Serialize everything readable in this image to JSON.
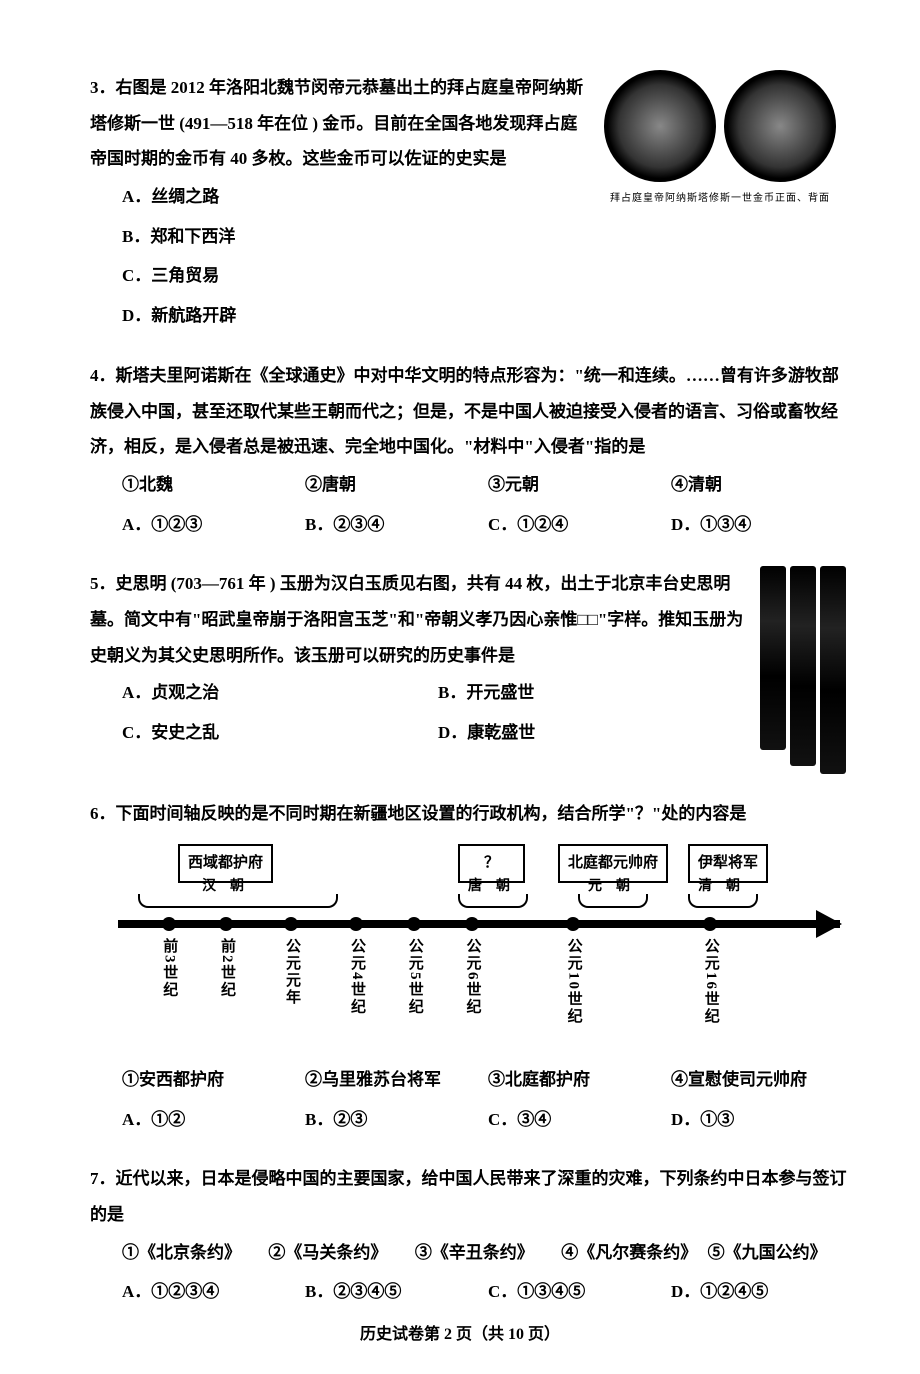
{
  "q3": {
    "num": "3．",
    "text": "右图是 2012 年洛阳北魏节闵帝元恭墓出土的拜占庭皇帝阿纳斯塔修斯一世 (491—518 年在位 ) 金币。目前在全国各地发现拜占庭帝国时期的金币有 40 多枚。这些金币可以佐证的史实是",
    "A": "A．丝绸之路",
    "B": "B．郑和下西洋",
    "C": "C．三角贸易",
    "D": "D．新航路开辟",
    "caption": "拜占庭皇帝阿纳斯塔修斯一世金币正面、背面"
  },
  "q4": {
    "num": "4．",
    "text": "斯塔夫里阿诺斯在《全球通史》中对中华文明的特点形容为：\"统一和连续。……曾有许多游牧部族侵入中国，甚至还取代某些王朝而代之；但是，不是中国人被迫接受入侵者的语言、习俗或畜牧经济，相反，是入侵者总是被迅速、完全地中国化。\"材料中\"入侵者\"指的是",
    "c1": "①北魏",
    "c2": "②唐朝",
    "c3": "③元朝",
    "c4": "④清朝",
    "A": "A．①②③",
    "B": "B．②③④",
    "C": "C．①②④",
    "D": "D．①③④"
  },
  "q5": {
    "num": "5．",
    "text": "史思明 (703—761 年 ) 玉册为汉白玉质见右图，共有 44 枚，出土于北京丰台史思明墓。简文中有\"昭武皇帝崩于洛阳宫玉芝\"和\"帝朝义孝乃因心亲惟□□\"字样。推知玉册为史朝义为其父史思明所作。该玉册可以研究的历史事件是",
    "A": "A．贞观之治",
    "B": "B．开元盛世",
    "C": "C．安史之乱",
    "D": "D．康乾盛世"
  },
  "q6": {
    "num": "6．",
    "text": "下面时间轴反映的是不同时期在新疆地区设置的行政机构，结合所学\"？\"处的内容是",
    "box1": "西域都护府",
    "sub1": "汉　朝",
    "box2": "？",
    "sub2": "唐　朝",
    "box3": "北庭都元帅府",
    "sub3": "元　朝",
    "box4": "伊犁将军",
    "sub4": "清　朝",
    "ticks": [
      "前3世纪",
      "前2世纪",
      "公元元年",
      "公元4世纪",
      "公元5世纪",
      "公元6世纪",
      "公元10世纪",
      "公元16世纪"
    ],
    "c1": "①安西都护府",
    "c2": "②乌里雅苏台将军",
    "c3": "③北庭都护府",
    "c4": "④宣慰使司元帅府",
    "A": "A．①②",
    "B": "B．②③",
    "C": "C．③④",
    "D": "D．①③"
  },
  "q7": {
    "num": "7．",
    "text": "近代以来，日本是侵略中国的主要国家，给中国人民带来了深重的灾难，下列条约中日本参与签订的是",
    "c1": "①《北京条约》",
    "c2": "②《马关条约》",
    "c3": "③《辛丑条约》",
    "c4": "④《凡尔赛条约》",
    "c5": "⑤《九国公约》",
    "A": "A．①②③④",
    "B": "B．②③④⑤",
    "C": "C．①③④⑤",
    "D": "D．①②④⑤"
  },
  "footer": "历史试卷第 2 页（共 10 页）",
  "tl_positions": [
    7,
    15,
    24,
    33,
    41,
    49,
    63,
    82
  ]
}
